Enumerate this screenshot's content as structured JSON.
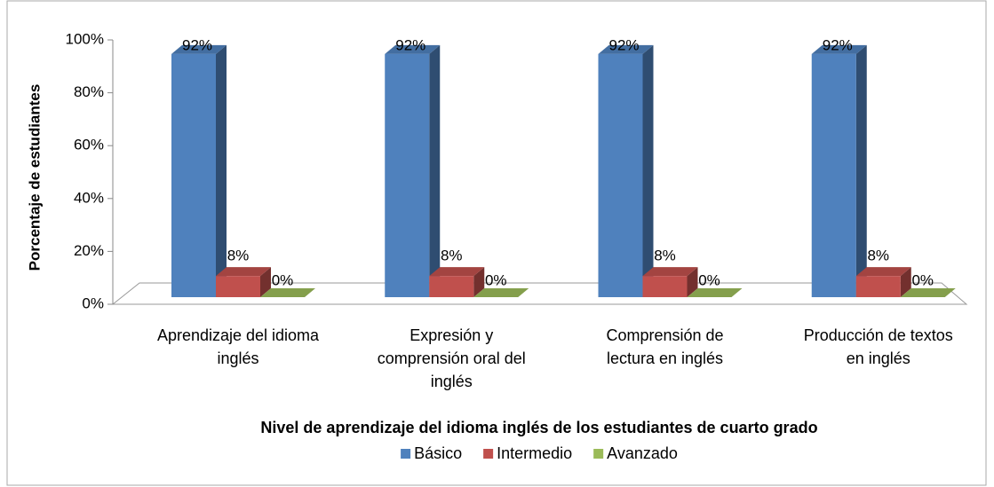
{
  "chart_data": {
    "type": "bar3d",
    "xlabel": "Nivel de aprendizaje del idioma inglés de los estudiantes de cuarto grado",
    "ylabel": "Porcentaje de estudiantes",
    "categories": [
      "Aprendizaje del idioma inglés",
      "Expresión y comprensión oral del inglés",
      "Comprensión de lectura en inglés",
      "Producción de textos en inglés"
    ],
    "series": [
      {
        "name": "Básico",
        "color": "#4f81bd",
        "values": [
          92,
          92,
          92,
          92
        ],
        "value_labels": [
          "92%",
          "92%",
          "92%",
          "92%"
        ]
      },
      {
        "name": "Intermedio",
        "color": "#c0504d",
        "values": [
          8,
          8,
          8,
          8
        ],
        "value_labels": [
          "8%",
          "8%",
          "8%",
          "8%"
        ]
      },
      {
        "name": "Avanzado",
        "color": "#9bbb59",
        "values": [
          0,
          0,
          0,
          0
        ],
        "value_labels": [
          "0%",
          "0%",
          "0%",
          "0%"
        ]
      }
    ],
    "ylim": [
      0,
      100
    ],
    "yticks": [
      {
        "value": 0,
        "label": "0%"
      },
      {
        "value": 20,
        "label": "20%"
      },
      {
        "value": 40,
        "label": "40%"
      },
      {
        "value": 60,
        "label": "60%"
      },
      {
        "value": 80,
        "label": "80%"
      },
      {
        "value": 100,
        "label": "100%"
      }
    ],
    "legend": "bottom"
  }
}
